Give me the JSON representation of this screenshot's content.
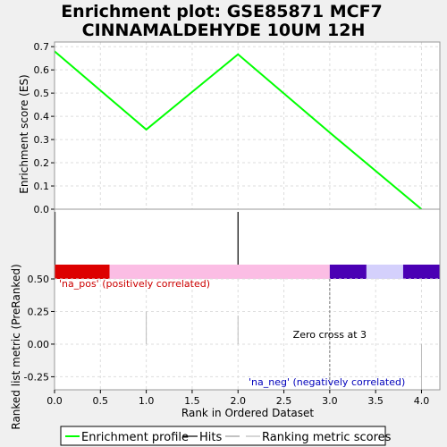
{
  "title_line1": "Enrichment plot: GSE85871 MCF7",
  "title_line2": "CINNAMALDEHYDE 10UM 12H",
  "chart_data": [
    {
      "type": "line",
      "panel": "enrichment",
      "ylabel": "Enrichment score (ES)",
      "xlim": [
        0,
        4.2
      ],
      "ylim": [
        0,
        0.72
      ],
      "y_ticks": [
        0.0,
        0.1,
        0.2,
        0.3,
        0.4,
        0.5,
        0.6,
        0.7
      ],
      "y_tick_labels": [
        "0.0",
        "0.1",
        "0.2",
        "0.3",
        "0.4",
        "0.5",
        "0.6",
        "0.7"
      ],
      "series": [
        {
          "name": "Enrichment profile",
          "color": "#00ff00",
          "x": [
            0,
            1,
            2,
            3,
            4
          ],
          "y": [
            0.68,
            0.343,
            0.667,
            0.33,
            0.0
          ]
        }
      ],
      "hits": [
        0,
        2
      ],
      "grid": true
    },
    {
      "type": "bar",
      "panel": "ranking",
      "xlabel": "Rank in Ordered Dataset",
      "ylabel": "Ranked list metric (PreRanked)",
      "xlim": [
        0,
        4.2
      ],
      "ylim": [
        -0.35,
        0.5
      ],
      "x_ticks": [
        0.0,
        0.5,
        1.0,
        1.5,
        2.0,
        2.5,
        3.0,
        3.5,
        4.0
      ],
      "x_tick_labels": [
        "0.0",
        "0.5",
        "1.0",
        "1.5",
        "2.0",
        "2.5",
        "3.0",
        "3.5",
        "4.0"
      ],
      "y_ticks": [
        -0.25,
        0.0,
        0.25,
        0.5
      ],
      "y_tick_labels": [
        "-0.25",
        "0.00",
        "0.25",
        "0.50"
      ],
      "series": [
        {
          "name": "Ranking metric scores",
          "color": "#bbbbbb",
          "x": [
            1,
            2,
            4
          ],
          "y": [
            0.25,
            0.22,
            -0.35
          ]
        }
      ],
      "color_bar": [
        {
          "from": 0.0,
          "to": 0.6,
          "color": "#dd0000"
        },
        {
          "from": 0.6,
          "to": 3.0,
          "color": "#fbbde4"
        },
        {
          "from": 3.0,
          "to": 3.4,
          "color": "#4a00b4"
        },
        {
          "from": 3.4,
          "to": 3.8,
          "color": "#d4d0fc"
        },
        {
          "from": 3.8,
          "to": 4.2,
          "color": "#4a00b4"
        }
      ],
      "zero_cross": 3,
      "zero_cross_label": "Zero cross at 3",
      "pos_label": "'na_pos' (positively correlated)",
      "neg_label": "'na_neg' (negatively correlated)",
      "pos_color": "#cc0000",
      "neg_color": "#0000bb",
      "grid": true
    }
  ],
  "legend": {
    "items": [
      {
        "label": "Enrichment profile",
        "color": "#00ff00"
      },
      {
        "label": "Hits",
        "color": "#000000"
      },
      {
        "label": "",
        "color": "#999999"
      },
      {
        "label": "Ranking metric scores",
        "color": "#bbbbbb"
      }
    ]
  }
}
